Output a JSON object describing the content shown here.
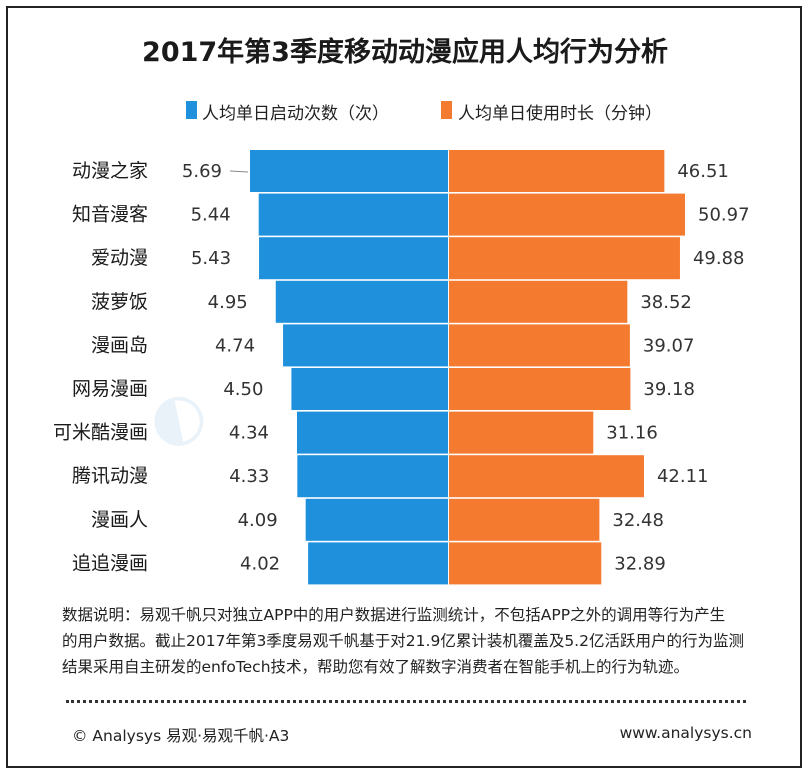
{
  "chart_data": {
    "type": "bar",
    "title": "2017年第3季度移动动漫应用人均行为分析",
    "categories": [
      "动漫之家",
      "知音漫客",
      "爱动漫",
      "菠萝饭",
      "漫画岛",
      "网易漫画",
      "可米酷漫画",
      "腾讯动漫",
      "漫画人",
      "追追漫画"
    ],
    "series": [
      {
        "name": "人均单日启动次数（次）",
        "color": "#1f90db",
        "values": [
          5.69,
          5.44,
          5.43,
          4.95,
          4.74,
          4.5,
          4.34,
          4.33,
          4.09,
          4.02
        ],
        "labels": [
          "5.69",
          "5.44",
          "5.43",
          "4.95",
          "4.74",
          "4.50",
          "4.34",
          "4.33",
          "4.09",
          "4.02"
        ]
      },
      {
        "name": "人均单日使用时长（分钟）",
        "color": "#f47a30",
        "values": [
          46.51,
          50.97,
          49.88,
          38.52,
          39.07,
          39.18,
          31.16,
          42.11,
          32.48,
          32.89
        ],
        "labels": [
          "46.51",
          "50.97",
          "49.88",
          "38.52",
          "39.07",
          "39.18",
          "31.16",
          "42.11",
          "32.48",
          "32.89"
        ]
      }
    ],
    "layout": "diverging horizontal bars (left: starts, right: minutes)",
    "xlabel": "",
    "ylabel": ""
  },
  "legend": {
    "starts": "人均单日启动次数（次）",
    "duration": "人均单日使用时长（分钟）"
  },
  "note": {
    "line1": "数据说明：易观千帆只对独立APP中的用户数据进行监测统计，不包括APP之外的调用等行为产生",
    "line2": "的用户数据。截止2017年第3季度易观千帆基于对21.9亿累计装机覆盖及5.2亿活跃用户的行为监测",
    "line3": "结果采用自主研发的enfoTech技术，帮助您有效了解数字消费者在智能手机上的行为轨迹。"
  },
  "footer": {
    "left": "© Analysys 易观·易观千帆·A3",
    "right": "www.analysys.cn"
  },
  "colors": {
    "starts": "#1f90db",
    "duration": "#f47a30"
  }
}
